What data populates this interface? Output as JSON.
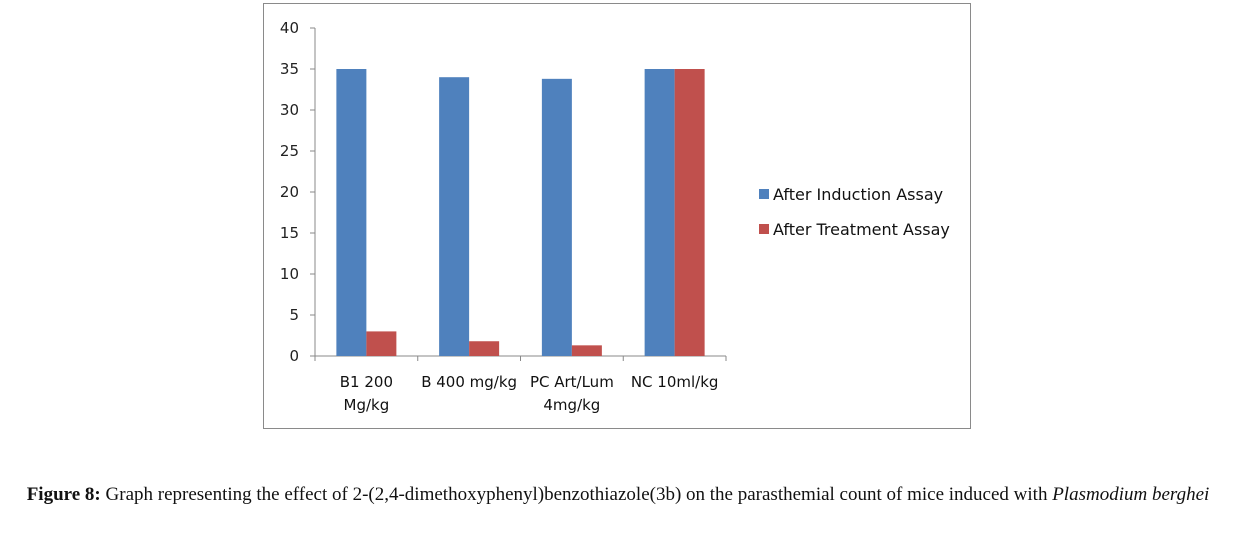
{
  "chart_data": {
    "type": "bar",
    "categories": [
      [
        "B1 200",
        "Mg/kg"
      ],
      [
        "B 400 mg/kg"
      ],
      [
        "PC Art/Lum",
        "4mg/kg"
      ],
      [
        "NC 10ml/kg"
      ]
    ],
    "series": [
      {
        "name": "After Induction Assay",
        "color": "#4F81BD",
        "values": [
          35,
          34,
          33.8,
          35
        ]
      },
      {
        "name": "After Treatment Assay",
        "color": "#C0504D",
        "values": [
          3,
          1.8,
          1.3,
          35
        ]
      }
    ],
    "ylim": [
      0,
      40
    ],
    "yticks": [
      0,
      5,
      10,
      15,
      20,
      25,
      30,
      35,
      40
    ],
    "grid": false,
    "legend": "right"
  },
  "caption": {
    "label": "Figure 8:",
    "text": " Graph representing the effect of 2-(2,4-dimethoxyphenyl)benzothiazole(3b) on the parasthemial count of mice induced with ",
    "italic": "Plasmodium berghei"
  }
}
